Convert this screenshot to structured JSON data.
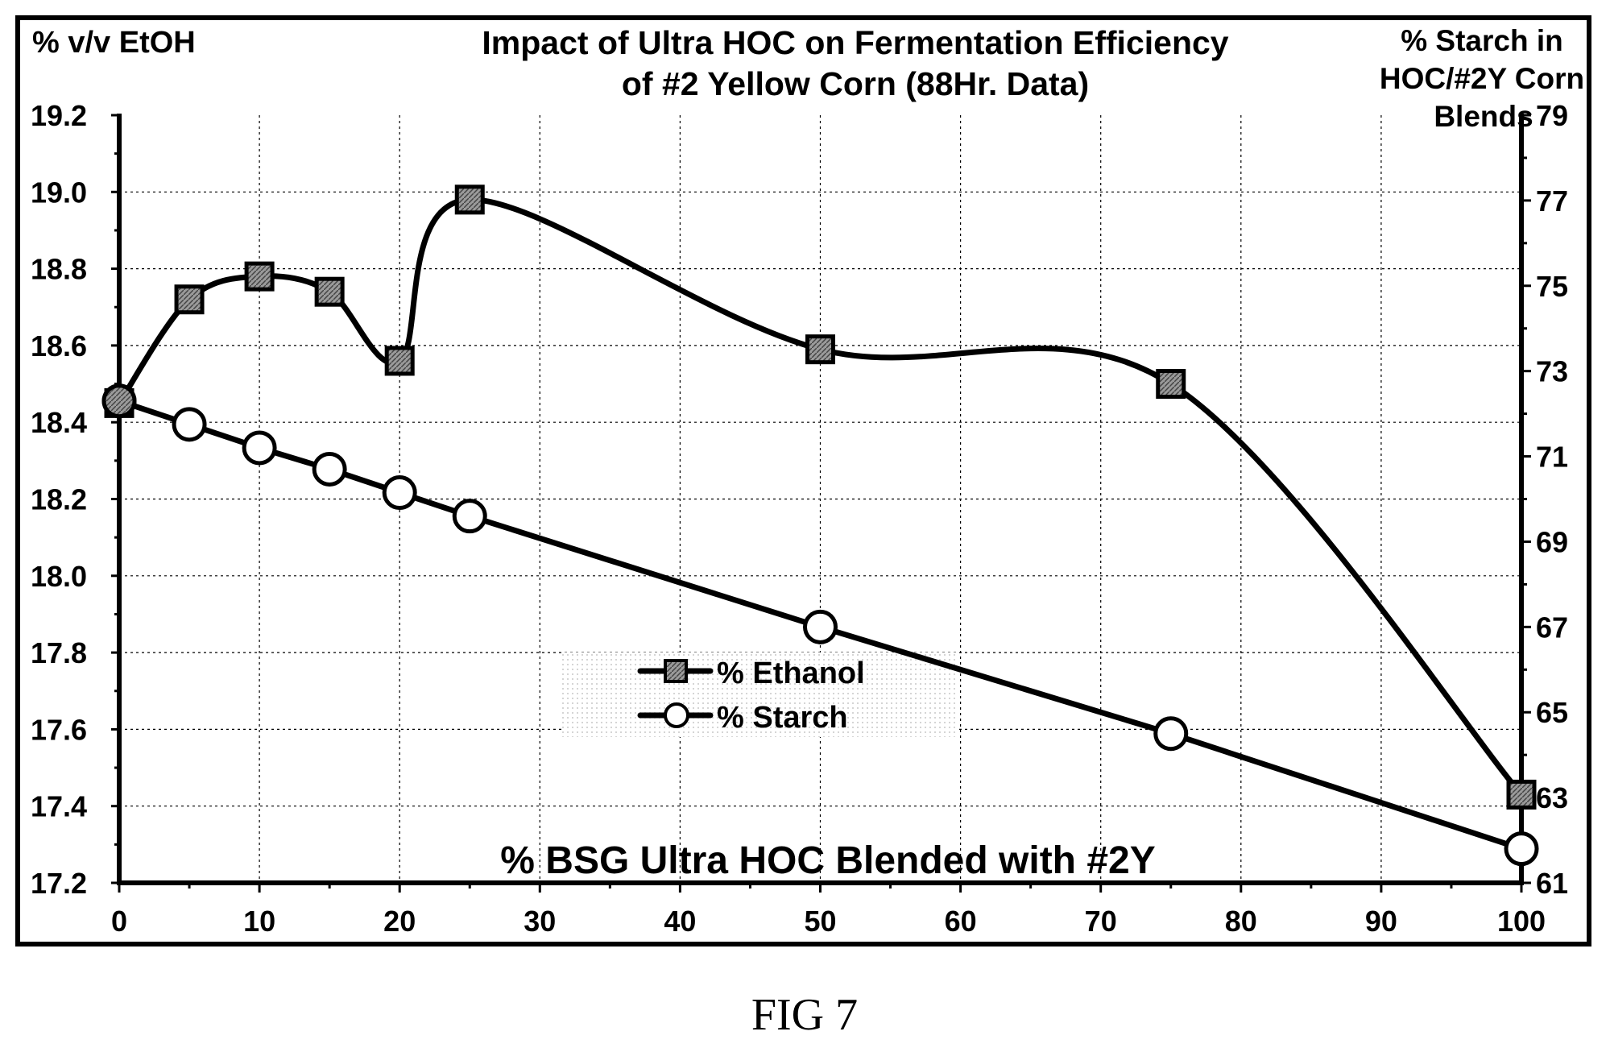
{
  "figure": {
    "caption": "FIG 7"
  },
  "chart_data": {
    "type": "line",
    "title_line1": "Impact of Ultra HOC on Fermentation Efficiency",
    "title_line2": "of #2 Yellow Corn (88Hr. Data)",
    "xlabel": "% BSG Ultra HOC Blended with #2Y",
    "ylabel_left": "% v/v EtOH",
    "ylabel_right_lines": [
      "% Starch in",
      "HOC/#2Y Corn",
      "Blends"
    ],
    "xlim": [
      0,
      100
    ],
    "ylim_left": [
      17.2,
      19.2
    ],
    "ylim_right": [
      61,
      79
    ],
    "x_ticks": [
      "0",
      "10",
      "20",
      "30",
      "40",
      "50",
      "60",
      "70",
      "80",
      "90",
      "100"
    ],
    "y_ticks_left": [
      "17.2",
      "17.4",
      "17.6",
      "17.8",
      "18.0",
      "18.2",
      "18.4",
      "18.6",
      "18.8",
      "19.0",
      "19.2"
    ],
    "y_ticks_right": [
      "61",
      "63",
      "65",
      "67",
      "69",
      "71",
      "73",
      "75",
      "77",
      "79"
    ],
    "grid": true,
    "legend_position": "center-left",
    "series": [
      {
        "name": "% Ethanol",
        "axis": "left",
        "marker": "square",
        "x": [
          0,
          5,
          10,
          15,
          20,
          25,
          50,
          75,
          100
        ],
        "y": [
          18.45,
          18.72,
          18.78,
          18.74,
          18.56,
          18.98,
          18.59,
          18.5,
          17.43
        ]
      },
      {
        "name": "% Starch",
        "axis": "right",
        "marker": "circle",
        "x": [
          0,
          5,
          10,
          15,
          20,
          25,
          50,
          75,
          100
        ],
        "y": [
          72.3,
          71.75,
          71.2,
          70.7,
          70.15,
          69.6,
          67.0,
          64.5,
          61.8
        ]
      }
    ]
  }
}
